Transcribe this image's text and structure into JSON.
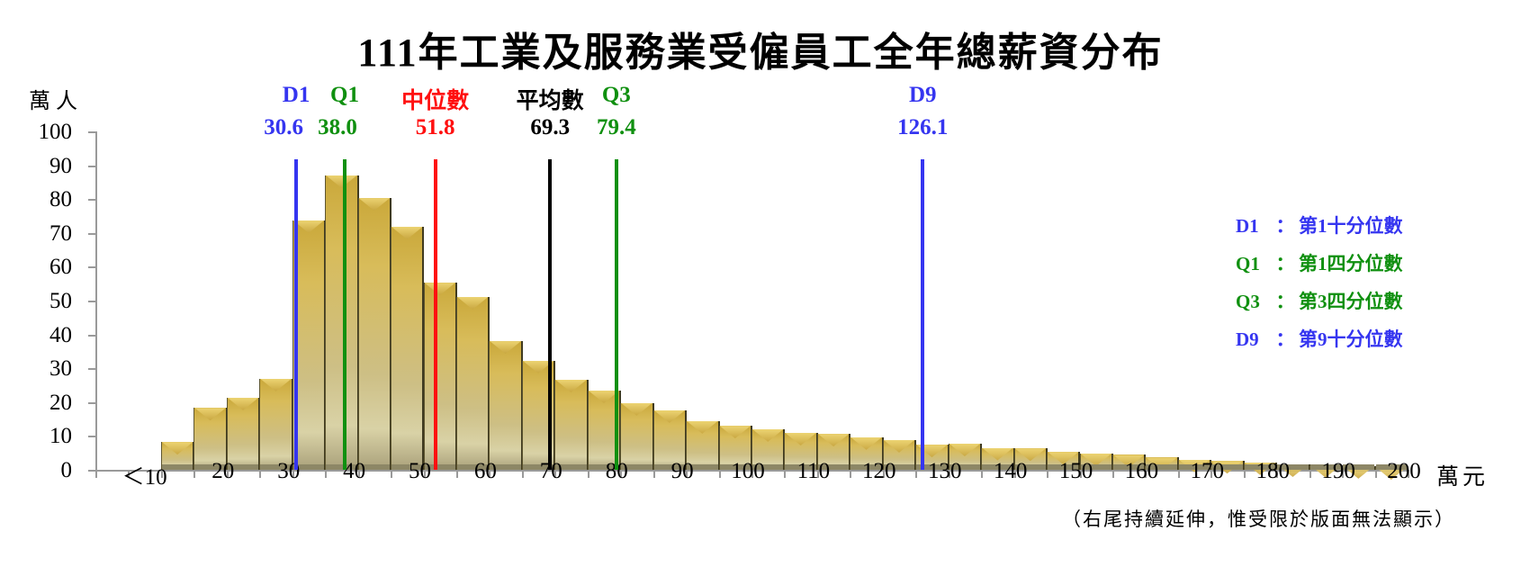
{
  "title": "111年工業及服務業受僱員工全年總薪資分布",
  "y_axis": {
    "unit": "萬人",
    "ticks": [
      "100",
      "90",
      "80",
      "70",
      "60",
      "50",
      "40",
      "30",
      "20",
      "10",
      "0"
    ]
  },
  "x_axis": {
    "unit": "萬元",
    "tick_labels": [
      "＜10",
      "20",
      "30",
      "40",
      "50",
      "60",
      "70",
      "80",
      "90",
      "100",
      "110",
      "120",
      "130",
      "140",
      "150",
      "160",
      "170",
      "180",
      "190",
      "200"
    ],
    "note": "（右尾持續延伸，惟受限於版面無法顯示）"
  },
  "stats": [
    {
      "key": "D1",
      "name": "D1",
      "value": "30.6",
      "x": 30.6,
      "color": "#3535f0"
    },
    {
      "key": "Q1",
      "name": "Q1",
      "value": "38.0",
      "x": 38.0,
      "color": "#109010"
    },
    {
      "key": "median",
      "name": "中位數",
      "value": "51.8",
      "x": 51.8,
      "color": "#ff1010"
    },
    {
      "key": "mean",
      "name": "平均數",
      "value": "69.3",
      "x": 69.3,
      "color": "#000000"
    },
    {
      "key": "Q3",
      "name": "Q3",
      "value": "79.4",
      "x": 79.4,
      "color": "#109010"
    },
    {
      "key": "D9",
      "name": "D9",
      "value": "126.1",
      "x": 126.1,
      "color": "#3535f0"
    }
  ],
  "legend": [
    {
      "key": "D1",
      "sep": "：",
      "desc": "第1十分位數",
      "color": "#3535f0"
    },
    {
      "key": "Q1",
      "sep": "：",
      "desc": "第1四分位數",
      "color": "#109010"
    },
    {
      "key": "Q3",
      "sep": "：",
      "desc": "第3四分位數",
      "color": "#109010"
    },
    {
      "key": "D9",
      "sep": "：",
      "desc": "第9十分位數",
      "color": "#3535f0"
    }
  ],
  "chart_data": {
    "type": "bar",
    "title": "111年工業及服務業受僱員工全年總薪資分布",
    "xlabel": "萬元",
    "ylabel": "萬人",
    "ylim": [
      0,
      100
    ],
    "xlim": [
      0,
      200
    ],
    "bin_width": 5,
    "categories": [
      "0-5",
      "5-10",
      "10-15",
      "15-20",
      "20-25",
      "25-30",
      "30-35",
      "35-40",
      "40-45",
      "45-50",
      "50-55",
      "55-60",
      "60-65",
      "65-70",
      "70-75",
      "75-80",
      "80-85",
      "85-90",
      "90-95",
      "95-100",
      "100-105",
      "105-110",
      "110-115",
      "115-120",
      "120-125",
      "125-130",
      "130-135",
      "135-140",
      "140-145",
      "145-150",
      "150-155",
      "155-160",
      "160-165",
      "165-170",
      "170-175",
      "175-180",
      "180-185",
      "185-190",
      "190-195",
      "195-200"
    ],
    "values": [
      0,
      0,
      8.2,
      18.3,
      21.3,
      26.9,
      73.7,
      87.0,
      80.3,
      71.8,
      55.3,
      51.1,
      38.0,
      32.2,
      26.6,
      23.4,
      19.7,
      17.6,
      14.4,
      13.0,
      12.0,
      10.9,
      10.6,
      9.6,
      8.8,
      7.4,
      7.7,
      6.5,
      6.3,
      5.3,
      4.8,
      4.4,
      3.6,
      3.0,
      2.6,
      2.2,
      1.6,
      1.4,
      1.1,
      0.8
    ],
    "reference_lines": [
      {
        "name": "D1",
        "label": "第1十分位數",
        "value": 30.6,
        "color": "#3535f0"
      },
      {
        "name": "Q1",
        "label": "第1四分位數",
        "value": 38.0,
        "color": "#109010"
      },
      {
        "name": "中位數",
        "value": 51.8,
        "color": "#ff1010"
      },
      {
        "name": "平均數",
        "value": 69.3,
        "color": "#000000"
      },
      {
        "name": "Q3",
        "label": "第3四分位數",
        "value": 79.4,
        "color": "#109010"
      },
      {
        "name": "D9",
        "label": "第9十分位數",
        "value": 126.1,
        "color": "#3535f0"
      }
    ],
    "grid": false,
    "legend_position": "right",
    "annotations": [
      "（右尾持續延伸，惟受限於版面無法顯示）"
    ]
  }
}
